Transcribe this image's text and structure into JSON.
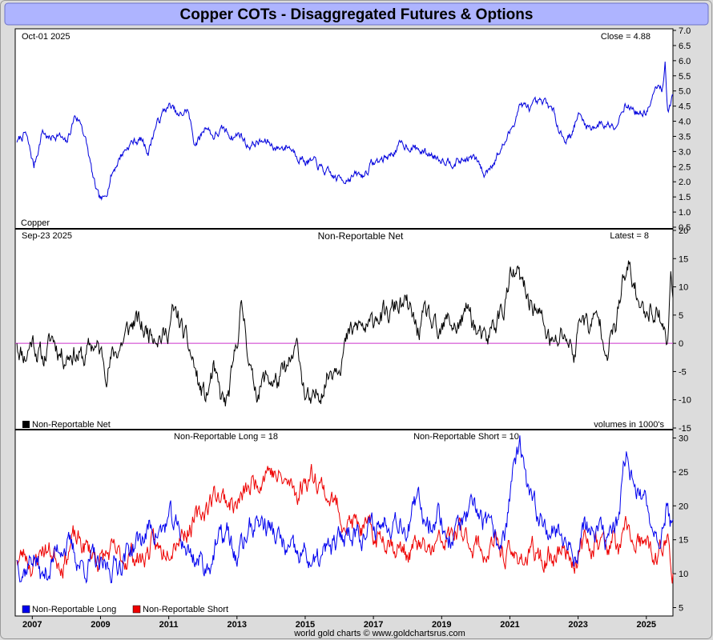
{
  "title": "Copper COTs - Disaggregated Futures & Options",
  "footer": "world gold charts © www.goldchartsrus.com",
  "x_axis": {
    "years": [
      "2007",
      "2009",
      "2011",
      "2013",
      "2015",
      "2017",
      "2019",
      "2021",
      "2023",
      "2025"
    ],
    "range": [
      2006.5,
      2025.78
    ]
  },
  "colors": {
    "price": "#0000dd",
    "net": "#000000",
    "zero_line": "#cc33cc",
    "long": "#0000ee",
    "short": "#ee0000",
    "header_bg": "#aeb4ff",
    "panel_bg": "#ffffff"
  },
  "chart_data": [
    {
      "type": "line",
      "panel": "price",
      "date_label": "Oct-01  2025",
      "value_label": "Close = 4.88",
      "series_label": "Copper",
      "ylim": [
        0.5,
        7.0
      ],
      "yticks": [
        "7.0",
        "6.5",
        "6.0",
        "5.5",
        "5.0",
        "4.5",
        "4.0",
        "3.5",
        "3.0",
        "2.5",
        "2.0",
        "1.5",
        "1.0",
        "0.5"
      ],
      "series": [
        {
          "name": "Copper",
          "x": [
            2006.55,
            2006.8,
            2007.05,
            2007.3,
            2007.5,
            2007.75,
            2008.0,
            2008.25,
            2008.45,
            2008.6,
            2008.8,
            2008.95,
            2009.1,
            2009.3,
            2009.6,
            2009.9,
            2010.2,
            2010.4,
            2010.6,
            2010.9,
            2011.05,
            2011.3,
            2011.55,
            2011.75,
            2011.9,
            2012.1,
            2012.3,
            2012.6,
            2012.9,
            2013.1,
            2013.3,
            2013.6,
            2013.9,
            2014.2,
            2014.5,
            2014.8,
            2015.0,
            2015.3,
            2015.6,
            2015.9,
            2016.1,
            2016.4,
            2016.7,
            2016.95,
            2017.2,
            2017.5,
            2017.8,
            2018.1,
            2018.4,
            2018.7,
            2019.0,
            2019.3,
            2019.6,
            2019.9,
            2020.1,
            2020.25,
            2020.4,
            2020.7,
            2021.0,
            2021.3,
            2021.5,
            2021.8,
            2022.1,
            2022.3,
            2022.6,
            2022.8,
            2023.0,
            2023.3,
            2023.6,
            2023.9,
            2024.15,
            2024.35,
            2024.6,
            2024.9,
            2025.1,
            2025.3,
            2025.45,
            2025.55,
            2025.62,
            2025.7,
            2025.78
          ],
          "values": [
            3.3,
            3.6,
            2.5,
            3.7,
            3.4,
            3.6,
            3.2,
            4.2,
            3.9,
            3.2,
            2.0,
            1.4,
            1.35,
            2.2,
            2.9,
            3.3,
            3.4,
            3.0,
            3.8,
            4.4,
            4.5,
            4.1,
            4.4,
            3.3,
            3.4,
            3.9,
            3.5,
            3.7,
            3.5,
            3.6,
            3.2,
            3.3,
            3.3,
            3.1,
            3.2,
            2.9,
            2.7,
            2.6,
            2.3,
            2.1,
            2.1,
            2.2,
            2.2,
            2.6,
            2.7,
            2.9,
            3.2,
            3.2,
            3.0,
            2.9,
            2.8,
            2.7,
            2.7,
            2.8,
            2.6,
            2.2,
            2.5,
            3.0,
            3.6,
            4.6,
            4.4,
            4.5,
            4.6,
            4.2,
            3.4,
            3.6,
            4.2,
            3.8,
            3.9,
            3.9,
            4.0,
            4.6,
            4.4,
            4.2,
            4.5,
            5.1,
            5.0,
            5.9,
            4.5,
            4.5,
            4.88
          ]
        }
      ]
    },
    {
      "type": "line",
      "panel": "net",
      "date_label": "Sep-23  2025",
      "title": "Non-Reportable Net",
      "value_label": "Latest = 8",
      "legend": "Non-Reportable Net",
      "units_note": "volumes in 1000's",
      "ylim": [
        -15,
        20
      ],
      "yticks": [
        "20",
        "15",
        "10",
        "5",
        "0",
        "-5",
        "-10",
        "-15"
      ],
      "series": [
        {
          "name": "Non-Reportable Net",
          "x": [
            2006.55,
            2006.8,
            2007.0,
            2007.3,
            2007.6,
            2007.9,
            2008.2,
            2008.5,
            2008.8,
            2009.0,
            2009.2,
            2009.5,
            2009.8,
            2010.0,
            2010.3,
            2010.6,
            2010.9,
            2011.1,
            2011.3,
            2011.5,
            2011.7,
            2011.9,
            2012.1,
            2012.3,
            2012.5,
            2012.7,
            2012.9,
            2013.1,
            2013.25,
            2013.45,
            2013.6,
            2013.9,
            2014.2,
            2014.5,
            2014.8,
            2015.0,
            2015.2,
            2015.5,
            2015.8,
            2016.0,
            2016.3,
            2016.6,
            2016.9,
            2017.1,
            2017.4,
            2017.7,
            2018.0,
            2018.3,
            2018.6,
            2018.9,
            2019.2,
            2019.5,
            2019.8,
            2020.1,
            2020.3,
            2020.5,
            2020.8,
            2021.0,
            2021.2,
            2021.5,
            2021.7,
            2022.0,
            2022.3,
            2022.6,
            2022.9,
            2023.1,
            2023.3,
            2023.6,
            2023.9,
            2024.1,
            2024.3,
            2024.5,
            2024.7,
            2024.9,
            2025.1,
            2025.3,
            2025.5,
            2025.62,
            2025.72,
            2025.78
          ],
          "values": [
            0,
            -2,
            1,
            -3,
            1,
            -2,
            -1,
            -3,
            0,
            -2,
            -4,
            -1,
            2,
            4,
            2,
            3,
            1,
            5,
            4,
            0,
            -3,
            -8,
            -10,
            -5,
            -10,
            -11,
            -5,
            6,
            3,
            -7,
            -8,
            -6,
            -7,
            -5,
            -1,
            -9,
            -12,
            -7,
            -4,
            -2,
            1,
            3,
            2,
            6,
            4,
            7,
            6,
            2,
            5,
            0,
            4,
            3,
            6,
            1,
            -1,
            3,
            6,
            11,
            12,
            8,
            7,
            3,
            -1,
            2,
            -2,
            6,
            3,
            4,
            0,
            3,
            10,
            13,
            9,
            5,
            7,
            6,
            4,
            -1,
            12,
            8
          ]
        }
      ],
      "reference_line": 0
    },
    {
      "type": "line",
      "panel": "long-short",
      "long_label": "Non-Reportable Long = 18",
      "short_label": "Non-Reportable Short = 10",
      "legend": [
        "Non-Reportable Long",
        "Non-Reportable Short"
      ],
      "ylim": [
        4,
        31
      ],
      "yticks": [
        "30",
        "25",
        "20",
        "15",
        "10",
        "5"
      ],
      "series": [
        {
          "name": "Non-Reportable Long",
          "x": [
            2006.55,
            2006.8,
            2007.05,
            2007.3,
            2007.6,
            2007.9,
            2008.2,
            2008.5,
            2008.8,
            2009.0,
            2009.3,
            2009.6,
            2009.9,
            2010.2,
            2010.5,
            2010.8,
            2011.0,
            2011.3,
            2011.6,
            2011.9,
            2012.1,
            2012.4,
            2012.7,
            2013.0,
            2013.3,
            2013.6,
            2013.9,
            2014.2,
            2014.5,
            2014.8,
            2015.0,
            2015.3,
            2015.6,
            2015.9,
            2016.2,
            2016.5,
            2016.8,
            2017.1,
            2017.4,
            2017.7,
            2018.0,
            2018.3,
            2018.6,
            2018.9,
            2019.2,
            2019.5,
            2019.8,
            2020.1,
            2020.3,
            2020.6,
            2020.9,
            2021.1,
            2021.3,
            2021.5,
            2021.7,
            2022.0,
            2022.3,
            2022.6,
            2022.9,
            2023.2,
            2023.5,
            2023.8,
            2024.0,
            2024.2,
            2024.4,
            2024.6,
            2024.9,
            2025.1,
            2025.3,
            2025.5,
            2025.62,
            2025.7,
            2025.78
          ],
          "values": [
            12,
            11,
            13,
            9,
            12,
            15,
            13,
            11,
            12,
            10,
            11,
            12,
            14,
            15,
            17,
            16,
            18,
            16,
            13,
            12,
            11,
            14,
            16,
            12,
            16,
            18,
            17,
            15,
            13,
            12,
            13,
            11,
            13,
            14,
            16,
            17,
            16,
            17,
            18,
            19,
            17,
            20,
            18,
            19,
            15,
            17,
            18,
            19,
            17,
            14,
            17,
            26,
            28,
            22,
            19,
            18,
            17,
            15,
            13,
            17,
            16,
            15,
            16,
            18,
            27,
            25,
            20,
            18,
            17,
            16,
            21,
            18,
            18
          ]
        },
        {
          "name": "Non-Reportable Short",
          "x": [
            2006.55,
            2006.8,
            2007.05,
            2007.3,
            2007.6,
            2007.9,
            2008.2,
            2008.5,
            2008.8,
            2009.0,
            2009.3,
            2009.6,
            2009.9,
            2010.2,
            2010.5,
            2010.8,
            2011.0,
            2011.3,
            2011.6,
            2011.9,
            2012.1,
            2012.4,
            2012.7,
            2013.0,
            2013.3,
            2013.6,
            2013.9,
            2014.2,
            2014.5,
            2014.8,
            2015.0,
            2015.3,
            2015.6,
            2015.9,
            2016.2,
            2016.5,
            2016.8,
            2017.1,
            2017.4,
            2017.7,
            2018.0,
            2018.3,
            2018.6,
            2018.9,
            2019.2,
            2019.5,
            2019.8,
            2020.1,
            2020.3,
            2020.6,
            2020.9,
            2021.1,
            2021.3,
            2021.5,
            2021.7,
            2022.0,
            2022.3,
            2022.6,
            2022.9,
            2023.2,
            2023.5,
            2023.8,
            2024.0,
            2024.2,
            2024.4,
            2024.6,
            2024.9,
            2025.1,
            2025.3,
            2025.5,
            2025.62,
            2025.7,
            2025.78
          ],
          "values": [
            12,
            13,
            11,
            14,
            13,
            12,
            15,
            14,
            13,
            12,
            13,
            12,
            13,
            12,
            14,
            13,
            15,
            16,
            17,
            18,
            20,
            22,
            21,
            20,
            22,
            24,
            26,
            24,
            23,
            22,
            24,
            25,
            22,
            20,
            18,
            17,
            16,
            15,
            16,
            14,
            13,
            14,
            13,
            14,
            15,
            16,
            15,
            14,
            13,
            14,
            13,
            12,
            13,
            12,
            13,
            12,
            13,
            14,
            12,
            14,
            15,
            14,
            15,
            13,
            16,
            15,
            14,
            13,
            12,
            14,
            17,
            10,
            10
          ]
        }
      ]
    }
  ]
}
